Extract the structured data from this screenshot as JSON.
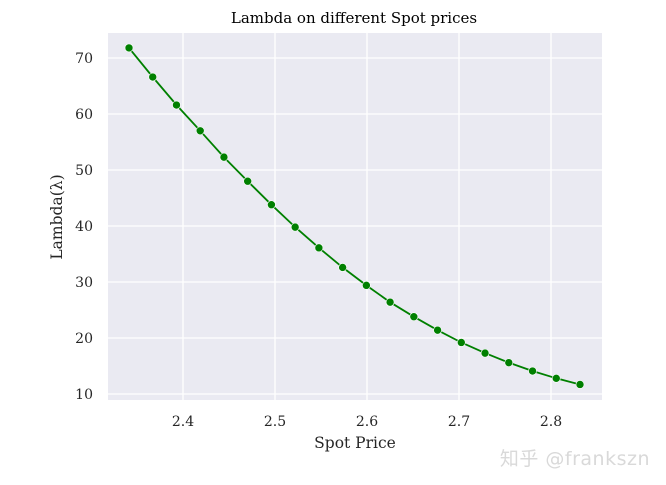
{
  "chart_data": {
    "type": "line",
    "title": "Lambda on different Spot prices",
    "xlabel": "Spot Price",
    "ylabel": "Lambda(λ)",
    "xlim": [
      2.32,
      2.858
    ],
    "ylim": [
      8.9,
      74.4
    ],
    "xticks": [
      2.4,
      2.5,
      2.6,
      2.7,
      2.8
    ],
    "xtick_labels": [
      "2.4",
      "2.5",
      "2.6",
      "2.7",
      "2.8"
    ],
    "yticks": [
      10,
      20,
      30,
      40,
      50,
      60,
      70
    ],
    "ytick_labels": [
      "10",
      "20",
      "30",
      "40",
      "50",
      "60",
      "70"
    ],
    "grid": true,
    "legend": null,
    "series": [
      {
        "name": "Lambda",
        "color": "#008000",
        "marker": "o",
        "x": [
          2.339,
          2.367,
          2.395,
          2.422,
          2.45,
          2.478,
          2.506,
          2.534,
          2.561,
          2.589,
          2.617,
          2.645,
          2.673,
          2.7,
          2.728,
          2.756,
          2.784,
          2.811,
          2.839,
          2.867
        ],
        "y": [
          71.8,
          66.6,
          61.6,
          57.0,
          52.3,
          48.0,
          43.8,
          39.8,
          36.1,
          32.6,
          29.4,
          26.4,
          23.8,
          21.4,
          19.2,
          17.3,
          15.6,
          14.1,
          12.8,
          11.7
        ]
      }
    ]
  },
  "style": {
    "plot_bg": "#eaeaf2",
    "grid_color": "#ffffff",
    "line_color": "#008000"
  },
  "watermark": "知乎 @frankszn"
}
